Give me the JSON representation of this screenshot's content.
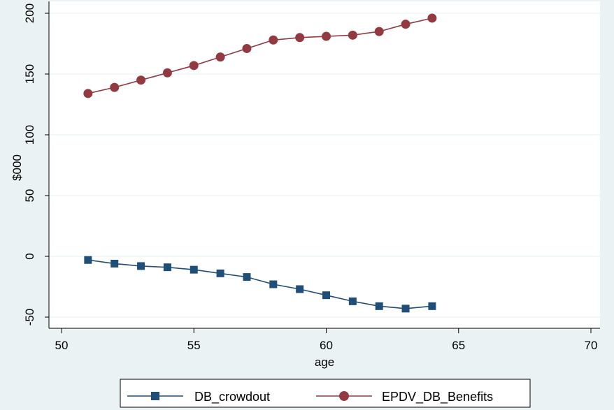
{
  "chart_data": {
    "type": "line",
    "title": "",
    "xlabel": "age",
    "ylabel": "$000",
    "xlim": [
      50,
      70
    ],
    "ylim": [
      -50,
      200
    ],
    "xticks": [
      "50",
      "55",
      "60",
      "65",
      "70"
    ],
    "yticks": [
      "-50",
      "0",
      "50",
      "100",
      "150",
      "200"
    ],
    "grid": "horizontal",
    "legend_position": "bottom",
    "x": [
      51,
      52,
      53,
      54,
      55,
      56,
      57,
      58,
      59,
      60,
      61,
      62,
      63,
      64
    ],
    "series": [
      {
        "name": "DB_crowdout",
        "color": "#1f4e79",
        "marker": "square",
        "values": [
          -3,
          -6,
          -8,
          -9,
          -11,
          -14,
          -17,
          -23,
          -27,
          -32,
          -37,
          -41,
          -43,
          -41
        ]
      },
      {
        "name": "EPDV_DB_Benefits",
        "color": "#923a40",
        "marker": "circle",
        "values": [
          134,
          139,
          145,
          151,
          157,
          164,
          171,
          178,
          180,
          181,
          182,
          185,
          191,
          196
        ]
      }
    ]
  },
  "colors": {
    "background": "#eaf2f3",
    "plot_area": "#ffffff",
    "grid": "#eaf2f3",
    "axis": "#000000"
  }
}
